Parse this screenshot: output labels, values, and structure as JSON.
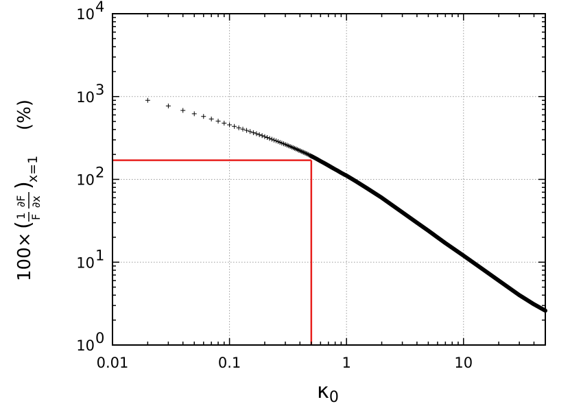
{
  "chart_data": {
    "type": "scatter",
    "title": "",
    "xlabel": "κ0",
    "ylabel": "100× ( (1/F) ∂F/∂x )x=1   (%)",
    "xscale": "log",
    "yscale": "log",
    "xlim": [
      0.01,
      50
    ],
    "ylim": [
      1,
      10000
    ],
    "grid": true,
    "legend": "none",
    "x_ticks": [
      0.01,
      0.1,
      1,
      10
    ],
    "x_tick_labels": [
      "0.01",
      "0.1",
      "1",
      "10"
    ],
    "y_ticks": [
      1,
      10,
      100,
      1000,
      10000
    ],
    "y_tick_labels": [
      {
        "base": "10",
        "exp": "0"
      },
      {
        "base": "10",
        "exp": "1"
      },
      {
        "base": "10",
        "exp": "2"
      },
      {
        "base": "10",
        "exp": "3"
      },
      {
        "base": "10",
        "exp": "4"
      }
    ],
    "series": [
      {
        "marker": "+",
        "color": "#000000",
        "x": [
          0.02,
          0.03,
          0.04,
          0.05,
          0.06,
          0.07,
          0.08,
          0.09,
          0.1,
          0.11,
          0.12,
          0.13,
          0.14,
          0.15,
          0.16,
          0.17,
          0.18,
          0.19,
          0.2,
          0.21,
          0.22,
          0.23,
          0.24,
          0.25,
          0.26,
          0.27,
          0.28,
          0.29,
          0.3,
          0.31,
          0.32,
          0.33,
          0.34,
          0.35,
          0.36,
          0.37,
          0.38,
          0.39,
          0.4,
          0.41,
          0.42,
          0.43,
          0.44,
          0.45,
          0.46,
          0.47,
          0.48,
          0.49,
          0.5,
          0.55,
          0.6,
          0.65,
          0.7,
          0.75,
          0.8,
          0.85,
          0.9,
          0.95,
          1.0,
          1.2,
          1.5,
          2,
          3,
          4,
          5,
          7,
          10,
          15,
          20,
          30,
          40,
          50
        ],
        "y": [
          900,
          770,
          680,
          620,
          575,
          535,
          505,
          478,
          455,
          436,
          419,
          404,
          390,
          378,
          366,
          356,
          346,
          337,
          328,
          320,
          312,
          305,
          298,
          292,
          286,
          280,
          274,
          269,
          264,
          259,
          254,
          250,
          245,
          241,
          237,
          233,
          229,
          225,
          222,
          218,
          215,
          212,
          209,
          206,
          203,
          200,
          197,
          194,
          191,
          178,
          166,
          156,
          147,
          139,
          132,
          126,
          120,
          115,
          111,
          95,
          78,
          60,
          40,
          30,
          24,
          17,
          12,
          8,
          6,
          4,
          3.1,
          2.6
        ]
      }
    ],
    "annotations": [
      {
        "type": "crosshair",
        "color": "#e8201e",
        "x": 0.5,
        "y": 170
      }
    ]
  }
}
